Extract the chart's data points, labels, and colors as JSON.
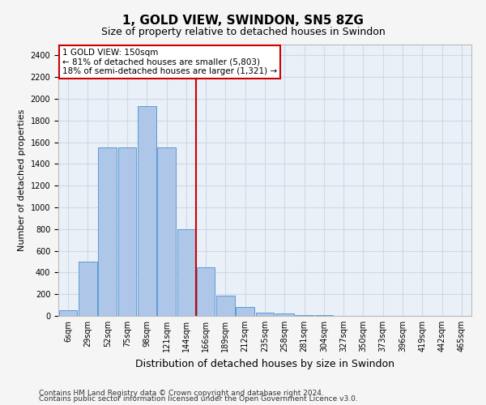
{
  "title": "1, GOLD VIEW, SWINDON, SN5 8ZG",
  "subtitle": "Size of property relative to detached houses in Swindon",
  "xlabel": "Distribution of detached houses by size in Swindon",
  "ylabel": "Number of detached properties",
  "footnote1": "Contains HM Land Registry data © Crown copyright and database right 2024.",
  "footnote2": "Contains public sector information licensed under the Open Government Licence v3.0.",
  "categories": [
    "6sqm",
    "29sqm",
    "52sqm",
    "75sqm",
    "98sqm",
    "121sqm",
    "144sqm",
    "166sqm",
    "189sqm",
    "212sqm",
    "235sqm",
    "258sqm",
    "281sqm",
    "304sqm",
    "327sqm",
    "350sqm",
    "373sqm",
    "396sqm",
    "419sqm",
    "442sqm",
    "465sqm"
  ],
  "values": [
    50,
    500,
    1550,
    1550,
    1930,
    1550,
    800,
    450,
    190,
    80,
    30,
    20,
    10,
    5,
    2,
    2,
    0,
    0,
    0,
    0,
    0
  ],
  "bar_color": "#aec6e8",
  "bar_edge_color": "#5b9bd5",
  "grid_color": "#d0d8e8",
  "background_color": "#eaf0f8",
  "fig_background": "#f5f5f5",
  "ylim": [
    0,
    2500
  ],
  "yticks": [
    0,
    200,
    400,
    600,
    800,
    1000,
    1200,
    1400,
    1600,
    1800,
    2000,
    2200,
    2400
  ],
  "red_line_x": 6.5,
  "annotation_title": "1 GOLD VIEW: 150sqm",
  "annotation_line1": "← 81% of detached houses are smaller (5,803)",
  "annotation_line2": "18% of semi-detached houses are larger (1,321) →",
  "annotation_box_color": "#ffffff",
  "annotation_border_color": "#cc0000",
  "red_line_color": "#cc0000",
  "title_fontsize": 11,
  "subtitle_fontsize": 9,
  "xlabel_fontsize": 9,
  "ylabel_fontsize": 8,
  "tick_fontsize": 7,
  "ann_fontsize": 7.5,
  "footnote_fontsize": 6.5
}
